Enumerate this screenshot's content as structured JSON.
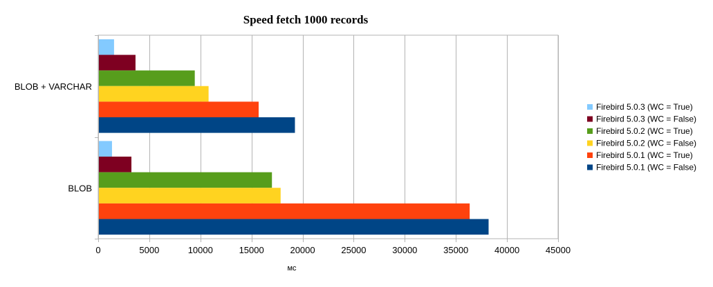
{
  "chart_data": {
    "type": "bar",
    "orientation": "horizontal",
    "title": "Speed fetch 1000 records",
    "xlabel": "мс",
    "ylabel": "",
    "xlim": [
      0,
      45000
    ],
    "x_ticks": [
      0,
      5000,
      10000,
      15000,
      20000,
      25000,
      30000,
      35000,
      40000,
      45000
    ],
    "grid": "vertical",
    "legend_position": "right",
    "categories": [
      "BLOB + VARCHAR",
      "BLOB"
    ],
    "series": [
      {
        "name": "Firebird 5.0.3 (WC = True)",
        "color": "#83caff",
        "values": [
          1550,
          1350
        ]
      },
      {
        "name": "Firebird 5.0.3 (WC = False)",
        "color": "#7e0021",
        "values": [
          3650,
          3250
        ]
      },
      {
        "name": "Firebird 5.0.2 (WC = True)",
        "color": "#579d1c",
        "values": [
          9450,
          17000
        ]
      },
      {
        "name": "Firebird 5.0.2 (WC = False)",
        "color": "#ffd320",
        "values": [
          10800,
          17850
        ]
      },
      {
        "name": "Firebird 5.0.1 (WC = True)",
        "color": "#ff420e",
        "values": [
          15700,
          36350
        ]
      },
      {
        "name": "Firebird 5.0.1 (WC = False)",
        "color": "#004586",
        "values": [
          19250,
          38200
        ]
      }
    ]
  }
}
